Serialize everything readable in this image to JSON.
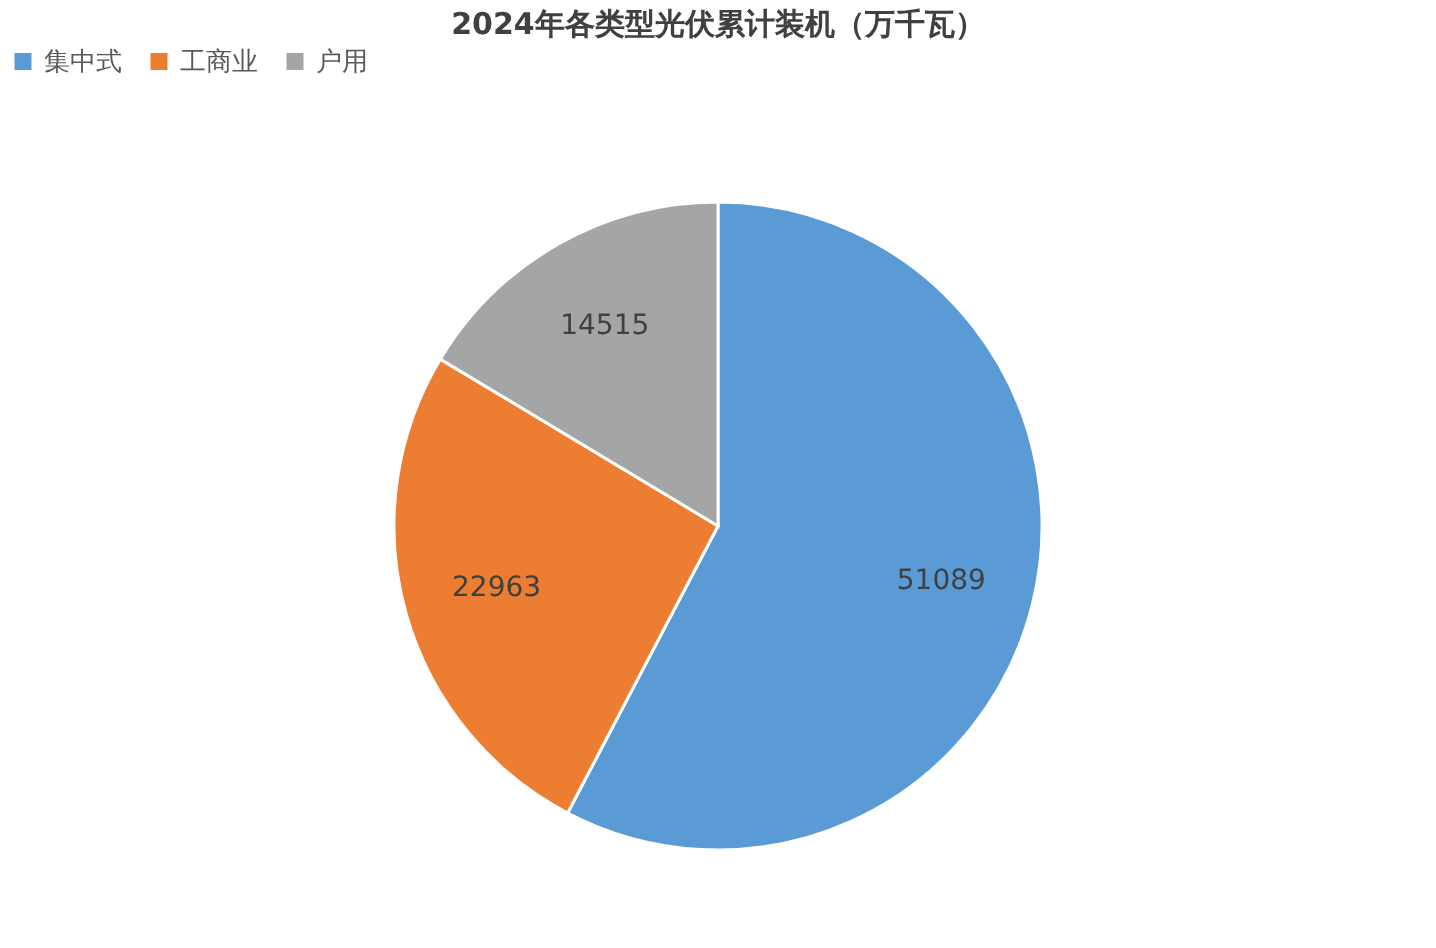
{
  "chart_data": {
    "type": "pie",
    "title": "2024年各类型光伏累计装机（万千瓦）",
    "categories": [
      "集中式",
      "工商业",
      "户用"
    ],
    "values": [
      51089,
      22963,
      14515
    ],
    "colors": [
      "#5b9bd5",
      "#ed7d31",
      "#a5a5a5"
    ],
    "data_labels": true,
    "legend": "top"
  }
}
